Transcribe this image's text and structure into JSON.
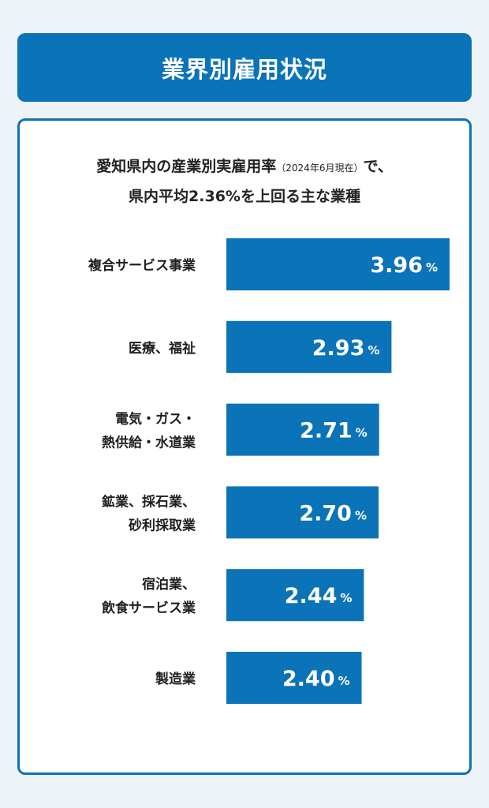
{
  "header": {
    "title": "業界別雇用状況"
  },
  "subtitle": {
    "line1_main": "愛知県内の産業別実雇用率",
    "line1_note": "（2024年6月現在）",
    "line1_tail": "で、",
    "line2": "県内平均2.36%を上回る主な業種"
  },
  "colors": {
    "bar": "#0b73b7",
    "frame": "#0b73b7",
    "background": "#eef3f8"
  },
  "chart_data": {
    "type": "bar",
    "orientation": "horizontal",
    "categories": [
      [
        "複合サービス事業"
      ],
      [
        "医療、福祉"
      ],
      [
        "電気・ガス・",
        "熱供給・水道業"
      ],
      [
        "鉱業、採石業、",
        "砂利採取業"
      ],
      [
        "宿泊業、",
        "飲食サービス業"
      ],
      [
        "製造業"
      ]
    ],
    "values": [
      3.96,
      2.93,
      2.71,
      2.7,
      2.44,
      2.4
    ],
    "value_labels": [
      "3.96",
      "2.93",
      "2.71",
      "2.70",
      "2.44",
      "2.40"
    ],
    "unit": "%",
    "xlim": [
      0,
      3.96
    ]
  }
}
